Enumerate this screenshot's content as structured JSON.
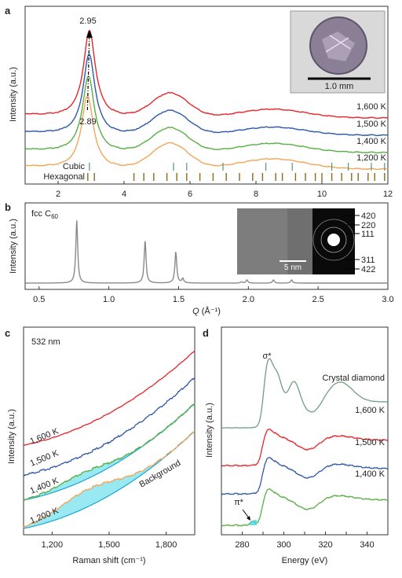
{
  "panels": {
    "a": {
      "letter": "a",
      "ylabel": "Intensity (a.u.)",
      "xticks": [
        "2",
        "4",
        "6",
        "8",
        "10",
        "12"
      ],
      "peak_top_label": "2.95",
      "peak_bottom_label": "2.89",
      "scale_label": "1.0 mm",
      "ref_cubic": "Cubic",
      "ref_hex": "Hexagonal",
      "colors": {
        "1600": "#e8262b",
        "1500": "#2f58a8",
        "1400": "#5aaf46",
        "1200": "#f2a65a",
        "ref": "#8a6a1c",
        "cubic": "#4e9a78"
      }
    },
    "b": {
      "letter": "b",
      "ylabel": "Intensity (a.u.)",
      "inset_label_main": "fcc C",
      "inset_label_sub": "60",
      "scale_label": "5 nm",
      "xlabel_q": "Q",
      "xlabel_unit": " (Å⁻¹)",
      "xticks": [
        "0.5",
        "1.0",
        "1.5",
        "2.0",
        "2.5",
        "3.0"
      ],
      "diffraction_labels": [
        "420",
        "220",
        "111",
        "311",
        "422"
      ]
    },
    "c": {
      "letter": "c",
      "ylabel": "Intensity (a.u.)",
      "xlabel": "Raman shift (cm⁻¹)",
      "wavelength": "532 nm",
      "background_label": "Background",
      "xticks": [
        "1,200",
        "1,500",
        "1,800"
      ]
    },
    "d": {
      "letter": "d",
      "ylabel": "Intensity (a.u.)",
      "xlabel": "Energy (eV)",
      "sigma_label": "σ*",
      "pi_label": "π*",
      "xticks": [
        "280",
        "290",
        "300",
        "310",
        "320",
        "330",
        "340"
      ]
    }
  },
  "chart_data": [
    {
      "panel": "a",
      "type": "line",
      "xlabel": "",
      "ylabel": "Intensity (a.u.)",
      "xlim": [
        1,
        12
      ],
      "series": [
        {
          "name": "1,600 K",
          "color": "#e8262b",
          "peaks": [
            {
              "x": 2.95,
              "h": 1.0
            },
            {
              "x": 5.4,
              "h": 0.28
            },
            {
              "x": 8.5,
              "h": 0.1
            }
          ]
        },
        {
          "name": "1,500 K",
          "color": "#2f58a8",
          "peaks": [
            {
              "x": 2.94,
              "h": 1.0
            },
            {
              "x": 5.4,
              "h": 0.3
            },
            {
              "x": 8.5,
              "h": 0.1
            }
          ]
        },
        {
          "name": "1,400 K",
          "color": "#5aaf46",
          "peaks": [
            {
              "x": 2.92,
              "h": 1.0
            },
            {
              "x": 5.4,
              "h": 0.32
            },
            {
              "x": 8.5,
              "h": 0.12
            }
          ]
        },
        {
          "name": "1,200 K",
          "color": "#f2a65a",
          "peaks": [
            {
              "x": 2.89,
              "h": 1.0
            },
            {
              "x": 5.4,
              "h": 0.35
            },
            {
              "x": 8.5,
              "h": 0.14
            }
          ]
        }
      ],
      "annotations": [
        "2.95",
        "2.89"
      ],
      "reference_cubic": [
        2.95,
        5.5,
        5.9,
        7.0,
        8.3,
        9.1,
        10.3,
        10.8,
        11.5,
        11.9
      ],
      "reference_hexagonal": [
        2.9,
        3.1,
        4.3,
        4.6,
        4.9,
        5.3,
        5.6,
        5.9,
        6.3,
        6.7,
        7.1,
        7.5,
        7.9,
        8.2,
        8.6,
        8.8,
        9.2,
        9.5,
        9.8,
        10.0,
        10.3,
        10.6,
        10.9,
        11.1,
        11.4,
        11.6,
        11.9
      ]
    },
    {
      "panel": "b",
      "type": "line",
      "xlabel": "Q (Å⁻¹)",
      "ylabel": "Intensity (a.u.)",
      "xlim": [
        0.4,
        3.0
      ],
      "series": [
        {
          "name": "fcc C60",
          "color": "#8a8a8a",
          "peaks": [
            {
              "x": 0.77,
              "h": 1.0
            },
            {
              "x": 1.26,
              "h": 0.68
            },
            {
              "x": 1.48,
              "h": 0.5
            },
            {
              "x": 1.53,
              "h": 0.07
            },
            {
              "x": 1.95,
              "h": 0.02
            },
            {
              "x": 1.99,
              "h": 0.05
            },
            {
              "x": 2.18,
              "h": 0.05
            },
            {
              "x": 2.31,
              "h": 0.05
            }
          ]
        }
      ]
    },
    {
      "panel": "c",
      "type": "line",
      "xlabel": "Raman shift (cm⁻¹)",
      "ylabel": "Intensity (a.u.)",
      "xlim": [
        1050,
        1950
      ],
      "series": [
        {
          "name": "1,600 K",
          "color": "#e8262b"
        },
        {
          "name": "1,500 K",
          "color": "#2f58a8"
        },
        {
          "name": "1,400 K",
          "color": "#5aaf46"
        },
        {
          "name": "1,200 K",
          "color": "#f2a65a"
        }
      ]
    },
    {
      "panel": "d",
      "type": "line",
      "xlabel": "Energy (eV)",
      "ylabel": "Intensity (a.u.)",
      "xlim": [
        270,
        350
      ],
      "series": [
        {
          "name": "Crystal diamond",
          "color": "#6e9e86"
        },
        {
          "name": "1,600 K",
          "color": "#e8262b"
        },
        {
          "name": "1,500 K",
          "color": "#2f58a8"
        },
        {
          "name": "1,400 K",
          "color": "#5aaf46"
        }
      ],
      "annotations": [
        "σ*",
        "π*"
      ]
    }
  ]
}
